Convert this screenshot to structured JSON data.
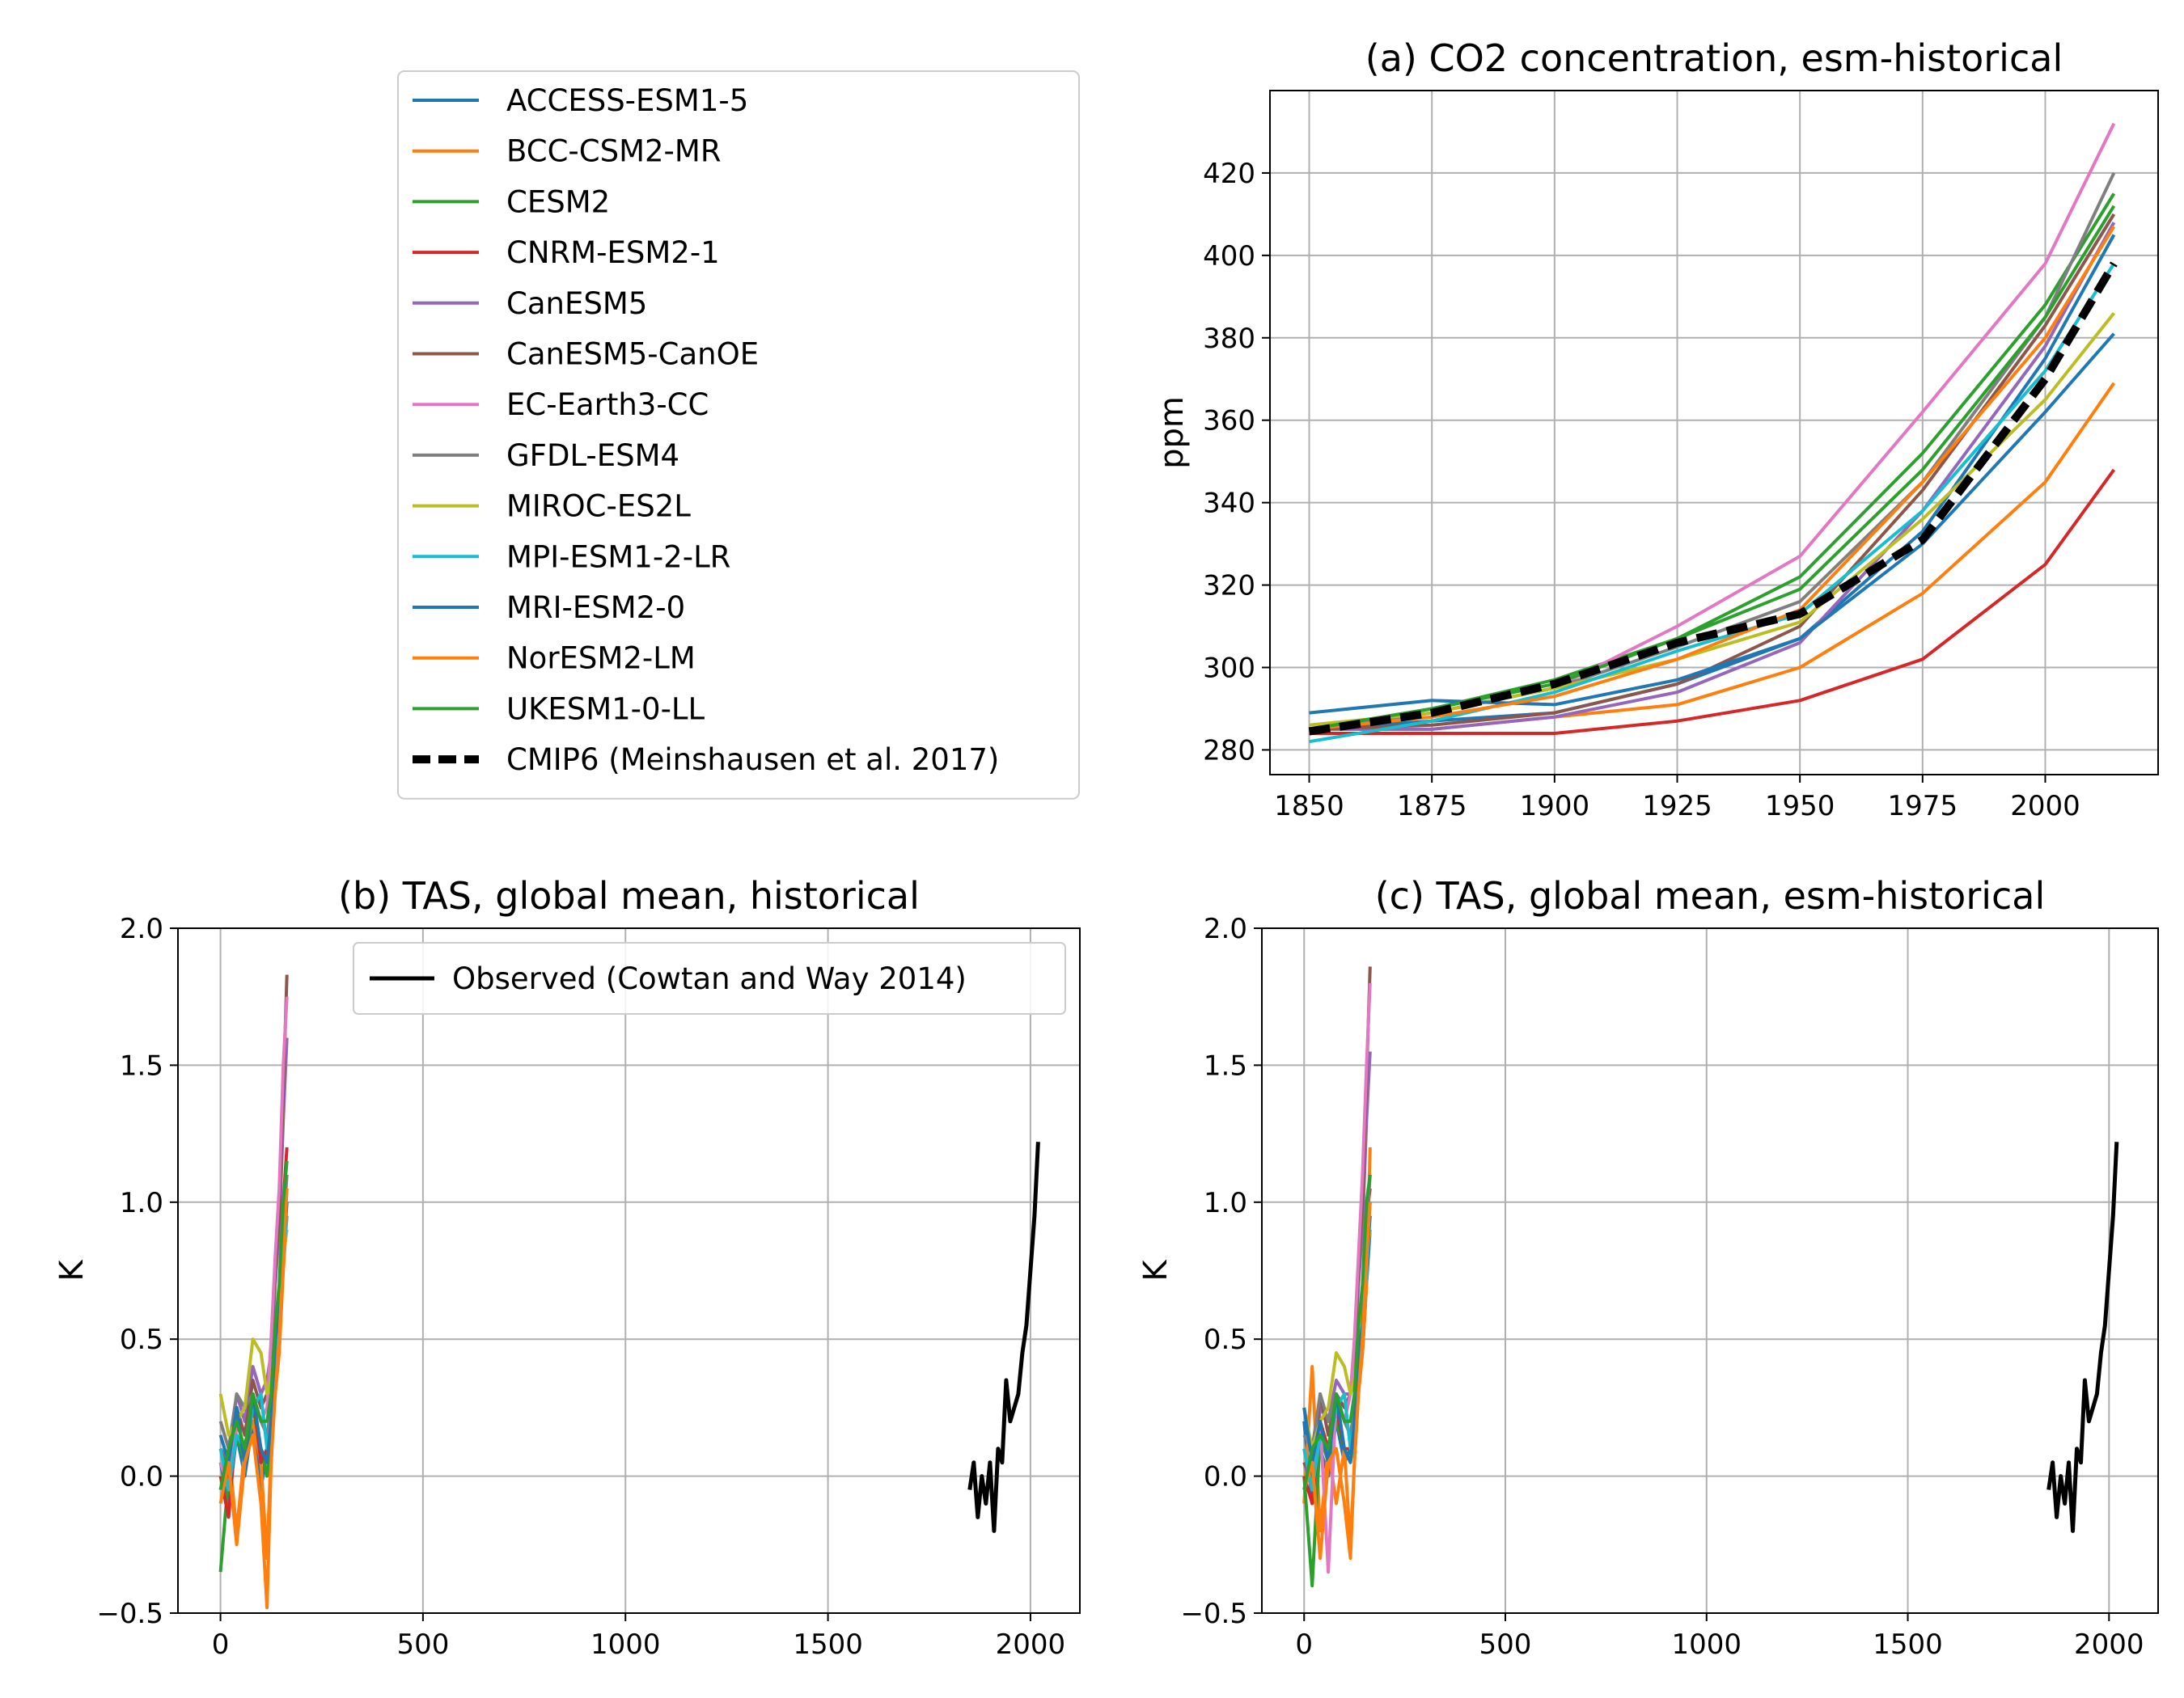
{
  "legend": {
    "items": [
      {
        "label": "ACCESS-ESM1-5",
        "color": "#1f77b4",
        "dash": false
      },
      {
        "label": "BCC-CSM2-MR",
        "color": "#ff7f0e",
        "dash": false
      },
      {
        "label": "CESM2",
        "color": "#2ca02c",
        "dash": false
      },
      {
        "label": "CNRM-ESM2-1",
        "color": "#d62728",
        "dash": false
      },
      {
        "label": "CanESM5",
        "color": "#9467bd",
        "dash": false
      },
      {
        "label": "CanESM5-CanOE",
        "color": "#8c564b",
        "dash": false
      },
      {
        "label": "EC-Earth3-CC",
        "color": "#e377c2",
        "dash": false
      },
      {
        "label": "GFDL-ESM4",
        "color": "#7f7f7f",
        "dash": false
      },
      {
        "label": "MIROC-ES2L",
        "color": "#bcbd22",
        "dash": false
      },
      {
        "label": "MPI-ESM1-2-LR",
        "color": "#17becf",
        "dash": false
      },
      {
        "label": "MRI-ESM2-0",
        "color": "#1f77b4",
        "dash": false
      },
      {
        "label": "NorESM2-LM",
        "color": "#ff7f0e",
        "dash": false
      },
      {
        "label": "UKESM1-0-LL",
        "color": "#2ca02c",
        "dash": false
      },
      {
        "label": "CMIP6 (Meinshausen et al. 2017)",
        "color": "#000000",
        "dash": true
      }
    ]
  },
  "chart_data": [
    {
      "id": "a",
      "type": "line",
      "title": "(a) CO2 concentration,  esm-historical",
      "xlabel": "",
      "ylabel": "ppm",
      "xlim": [
        1842,
        2023
      ],
      "ylim": [
        274,
        440
      ],
      "xticks": [
        1850,
        1875,
        1900,
        1925,
        1950,
        1975,
        2000
      ],
      "yticks": [
        280,
        300,
        320,
        340,
        360,
        380,
        400,
        420
      ],
      "grid": true,
      "x": [
        1850,
        1875,
        1900,
        1925,
        1950,
        1975,
        2000,
        2014
      ],
      "series": [
        {
          "name": "ACCESS-ESM1-5",
          "color": "#1f77b4",
          "values": [
            285,
            287,
            289,
            296,
            307,
            333,
            375,
            405
          ]
        },
        {
          "name": "BCC-CSM2-MR",
          "color": "#ff7f0e",
          "values": [
            285,
            285,
            288,
            291,
            300,
            318,
            345,
            369
          ]
        },
        {
          "name": "CESM2",
          "color": "#2ca02c",
          "values": [
            285,
            290,
            297,
            307,
            322,
            352,
            388,
            415
          ]
        },
        {
          "name": "CNRM-ESM2-1",
          "color": "#d62728",
          "values": [
            284,
            284,
            284,
            287,
            292,
            302,
            325,
            348
          ]
        },
        {
          "name": "CanESM5",
          "color": "#9467bd",
          "values": [
            285,
            285,
            288,
            294,
            306,
            338,
            378,
            408
          ]
        },
        {
          "name": "CanESM5-CanOE",
          "color": "#8c564b",
          "values": [
            285,
            286,
            289,
            296,
            310,
            343,
            383,
            410
          ]
        },
        {
          "name": "EC-Earth3-CC",
          "color": "#e377c2",
          "values": [
            285,
            289,
            295,
            310,
            327,
            362,
            398,
            432
          ]
        },
        {
          "name": "GFDL-ESM4",
          "color": "#7f7f7f",
          "values": [
            285,
            289,
            295,
            305,
            316,
            345,
            385,
            420
          ]
        },
        {
          "name": "MIROC-ES2L",
          "color": "#bcbd22",
          "values": [
            286,
            289,
            295,
            302,
            311,
            336,
            365,
            386
          ]
        },
        {
          "name": "MPI-ESM1-2-LR",
          "color": "#17becf",
          "values": [
            282,
            287,
            294,
            304,
            313,
            338,
            372,
            398
          ]
        },
        {
          "name": "MRI-ESM2-0",
          "color": "#1f77b4",
          "values": [
            289,
            292,
            291,
            297,
            307,
            330,
            362,
            381
          ]
        },
        {
          "name": "NorESM2-LM",
          "color": "#ff7f0e",
          "values": [
            285,
            288,
            293,
            302,
            314,
            345,
            380,
            407
          ]
        },
        {
          "name": "UKESM1-0-LL",
          "color": "#2ca02c",
          "values": [
            285,
            290,
            296,
            307,
            319,
            348,
            385,
            412
          ]
        },
        {
          "name": "CMIP6 (Meinshausen et al. 2017)",
          "color": "#000000",
          "dash": true,
          "values": [
            284.5,
            289,
            296,
            306,
            313,
            331,
            370,
            398
          ]
        }
      ]
    },
    {
      "id": "b",
      "type": "line",
      "title": "(b) TAS, global mean, historical",
      "xlabel": "",
      "ylabel": "K",
      "xlim": [
        -105,
        2122
      ],
      "ylim": [
        -0.5,
        2.0
      ],
      "xticks": [
        0,
        500,
        1000,
        1500,
        2000
      ],
      "yticks": [
        -0.5,
        0.0,
        0.5,
        1.0,
        1.5,
        2.0
      ],
      "ytick_labels": [
        "−0.5",
        "0.0",
        "0.5",
        "1.0",
        "1.5",
        "2.0"
      ],
      "grid": true,
      "legend_inset": {
        "label": "Observed (Cowtan and Way 2014)",
        "position": "upper right"
      },
      "model_x": [
        0,
        20,
        40,
        60,
        80,
        100,
        115,
        125,
        135,
        145,
        155,
        164
      ],
      "series": [
        {
          "name": "ACCESS-ESM1-5",
          "color": "#1f77b4",
          "values": [
            0.05,
            -0.1,
            0.15,
            0.0,
            0.2,
            -0.05,
            0.1,
            0.05,
            0.35,
            0.5,
            0.8,
            1.0
          ]
        },
        {
          "name": "BCC-CSM2-MR",
          "color": "#ff7f0e",
          "values": [
            -0.05,
            0.1,
            -0.2,
            0.1,
            0.2,
            0.05,
            -0.3,
            0.1,
            0.3,
            0.45,
            0.75,
            0.95
          ]
        },
        {
          "name": "CESM2",
          "color": "#2ca02c",
          "values": [
            -0.35,
            0.0,
            0.15,
            0.05,
            0.25,
            0.1,
            0.0,
            0.15,
            0.4,
            0.55,
            0.85,
            1.05
          ]
        },
        {
          "name": "CNRM-ESM2-1",
          "color": "#d62728",
          "values": [
            0.0,
            -0.15,
            0.2,
            0.1,
            0.3,
            0.05,
            0.1,
            0.2,
            0.45,
            0.6,
            1.0,
            1.2
          ]
        },
        {
          "name": "CanESM5",
          "color": "#9467bd",
          "values": [
            0.1,
            0.05,
            0.3,
            0.2,
            0.4,
            0.3,
            0.35,
            0.45,
            0.7,
            0.9,
            1.3,
            1.6
          ]
        },
        {
          "name": "CanESM5-CanOE",
          "color": "#8c564b",
          "values": [
            0.1,
            0.0,
            0.25,
            0.15,
            0.35,
            0.25,
            0.3,
            0.45,
            0.75,
            0.95,
            1.4,
            1.83
          ]
        },
        {
          "name": "EC-Earth3-CC",
          "color": "#e377c2",
          "values": [
            0.05,
            -0.05,
            0.2,
            0.1,
            0.3,
            0.2,
            0.25,
            0.5,
            0.8,
            1.05,
            1.5,
            1.75
          ]
        },
        {
          "name": "GFDL-ESM4",
          "color": "#7f7f7f",
          "values": [
            0.2,
            0.1,
            0.3,
            0.25,
            0.3,
            0.2,
            0.15,
            0.25,
            0.45,
            0.6,
            0.9,
            1.1
          ]
        },
        {
          "name": "MIROC-ES2L",
          "color": "#bcbd22",
          "values": [
            0.3,
            0.15,
            0.2,
            0.25,
            0.5,
            0.45,
            0.3,
            0.35,
            0.5,
            0.6,
            0.8,
            0.9
          ]
        },
        {
          "name": "MPI-ESM1-2-LR",
          "color": "#17becf",
          "values": [
            0.1,
            -0.05,
            0.15,
            0.1,
            0.25,
            0.3,
            0.1,
            0.2,
            0.45,
            0.55,
            0.8,
            0.95
          ]
        },
        {
          "name": "MRI-ESM2-0",
          "color": "#1f77b4",
          "values": [
            0.15,
            0.05,
            0.25,
            0.05,
            0.3,
            0.1,
            0.05,
            0.2,
            0.5,
            0.6,
            0.85,
            1.0
          ]
        },
        {
          "name": "NorESM2-LM",
          "color": "#ff7f0e",
          "values": [
            -0.1,
            0.05,
            -0.25,
            0.05,
            0.15,
            -0.1,
            -0.48,
            0.05,
            0.3,
            0.5,
            0.8,
            1.05
          ]
        },
        {
          "name": "UKESM1-0-LL",
          "color": "#2ca02c",
          "values": [
            -0.05,
            0.1,
            0.2,
            0.1,
            0.3,
            0.2,
            0.2,
            0.3,
            0.55,
            0.7,
            1.0,
            1.15
          ]
        }
      ],
      "observed": {
        "name": "Observed (Cowtan and Way 2014)",
        "color": "#000000",
        "x": [
          1850,
          1860,
          1870,
          1880,
          1890,
          1900,
          1910,
          1920,
          1930,
          1940,
          1950,
          1960,
          1970,
          1980,
          1990,
          2000,
          2010,
          2019
        ],
        "values": [
          -0.05,
          0.05,
          -0.15,
          0.0,
          -0.1,
          0.05,
          -0.2,
          0.1,
          0.05,
          0.35,
          0.2,
          0.25,
          0.3,
          0.45,
          0.55,
          0.75,
          0.95,
          1.22
        ]
      }
    },
    {
      "id": "c",
      "type": "line",
      "title": "(c) TAS, global mean, esm-historical",
      "xlabel": "",
      "ylabel": "K",
      "xlim": [
        -105,
        2122
      ],
      "ylim": [
        -0.5,
        2.0
      ],
      "xticks": [
        0,
        500,
        1000,
        1500,
        2000
      ],
      "yticks": [
        -0.5,
        0.0,
        0.5,
        1.0,
        1.5,
        2.0
      ],
      "ytick_labels": [
        "−0.5",
        "0.0",
        "0.5",
        "1.0",
        "1.5",
        "2.0"
      ],
      "grid": true,
      "model_x": [
        0,
        20,
        40,
        60,
        80,
        100,
        115,
        125,
        135,
        145,
        155,
        164
      ],
      "series": [
        {
          "name": "ACCESS-ESM1-5",
          "color": "#1f77b4",
          "values": [
            0.2,
            -0.1,
            0.1,
            0.0,
            0.2,
            0.05,
            0.1,
            0.1,
            0.35,
            0.45,
            0.7,
            0.9
          ]
        },
        {
          "name": "BCC-CSM2-MR",
          "color": "#ff7f0e",
          "values": [
            -0.1,
            0.4,
            -0.2,
            0.1,
            -0.1,
            0.1,
            -0.25,
            0.05,
            0.3,
            0.45,
            0.7,
            1.2
          ]
        },
        {
          "name": "CESM2",
          "color": "#2ca02c",
          "values": [
            0.0,
            -0.4,
            0.15,
            0.05,
            0.2,
            0.1,
            0.05,
            0.15,
            0.4,
            0.5,
            0.8,
            1.0
          ]
        },
        {
          "name": "CNRM-ESM2-1",
          "color": "#d62728",
          "values": [
            0.0,
            -0.1,
            0.2,
            0.1,
            0.25,
            0.1,
            0.1,
            0.2,
            0.45,
            0.6,
            0.95,
            1.05
          ]
        },
        {
          "name": "CanESM5",
          "color": "#9467bd",
          "values": [
            0.05,
            -0.05,
            0.25,
            0.2,
            0.35,
            0.3,
            0.3,
            0.45,
            0.7,
            0.9,
            1.3,
            1.55
          ]
        },
        {
          "name": "CanESM5-CanOE",
          "color": "#8c564b",
          "values": [
            0.05,
            0.0,
            0.3,
            0.15,
            0.3,
            0.25,
            0.3,
            0.45,
            0.75,
            1.0,
            1.45,
            1.86
          ]
        },
        {
          "name": "EC-Earth3-CC",
          "color": "#e377c2",
          "values": [
            0.1,
            -0.05,
            0.2,
            -0.35,
            0.3,
            0.2,
            0.3,
            0.5,
            0.8,
            1.1,
            1.5,
            1.8
          ]
        },
        {
          "name": "GFDL-ESM4",
          "color": "#7f7f7f",
          "values": [
            0.15,
            0.1,
            0.3,
            0.2,
            0.3,
            0.2,
            0.15,
            0.25,
            0.45,
            0.6,
            0.9,
            1.1
          ]
        },
        {
          "name": "MIROC-ES2L",
          "color": "#bcbd22",
          "values": [
            0.25,
            0.1,
            0.2,
            0.25,
            0.45,
            0.4,
            0.3,
            0.35,
            0.5,
            0.6,
            0.8,
            0.9
          ]
        },
        {
          "name": "MPI-ESM1-2-LR",
          "color": "#17becf",
          "values": [
            0.1,
            -0.05,
            0.15,
            0.1,
            0.25,
            0.3,
            0.1,
            0.2,
            0.45,
            0.55,
            0.75,
            0.95
          ]
        },
        {
          "name": "MRI-ESM2-0",
          "color": "#1f77b4",
          "values": [
            0.25,
            0.05,
            0.2,
            0.05,
            0.3,
            0.1,
            0.05,
            0.2,
            0.45,
            0.55,
            0.8,
            0.95
          ]
        },
        {
          "name": "NorESM2-LM",
          "color": "#ff7f0e",
          "values": [
            -0.05,
            0.05,
            -0.3,
            0.05,
            0.1,
            -0.1,
            -0.3,
            0.05,
            0.3,
            0.5,
            0.8,
            1.0
          ]
        },
        {
          "name": "UKESM1-0-LL",
          "color": "#2ca02c",
          "values": [
            -0.05,
            0.1,
            0.15,
            0.1,
            0.3,
            0.2,
            0.2,
            0.3,
            0.55,
            0.7,
            1.0,
            1.1
          ]
        }
      ],
      "observed": {
        "name": "Observed (Cowtan and Way 2014)",
        "color": "#000000",
        "x": [
          1850,
          1860,
          1870,
          1880,
          1890,
          1900,
          1910,
          1920,
          1930,
          1940,
          1950,
          1960,
          1970,
          1980,
          1990,
          2000,
          2010,
          2019
        ],
        "values": [
          -0.05,
          0.05,
          -0.15,
          0.0,
          -0.1,
          0.05,
          -0.2,
          0.1,
          0.05,
          0.35,
          0.2,
          0.25,
          0.3,
          0.45,
          0.55,
          0.75,
          0.95,
          1.22
        ]
      }
    }
  ]
}
